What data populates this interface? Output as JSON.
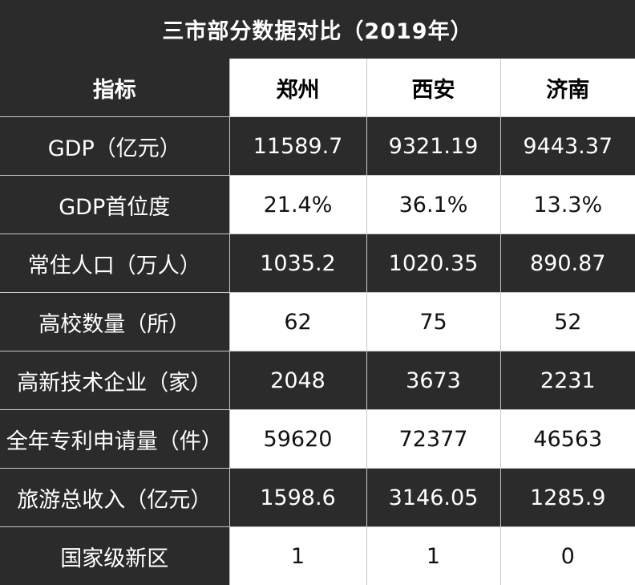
{
  "title": "三市部分数据对比（2019年）",
  "header": {
    "label": "指标",
    "cities": [
      "郑州",
      "西安",
      "济南"
    ]
  },
  "rows": [
    {
      "label": "GDP（亿元）",
      "values": [
        "11589.7",
        "9321.19",
        "9443.37"
      ]
    },
    {
      "label": "GDP首位度",
      "values": [
        "21.4%",
        "36.1%",
        "13.3%"
      ]
    },
    {
      "label": "常住人口（万人）",
      "values": [
        "1035.2",
        "1020.35",
        "890.87"
      ]
    },
    {
      "label": "高校数量（所）",
      "values": [
        "62",
        "75",
        "52"
      ]
    },
    {
      "label": "高新技术企业（家）",
      "values": [
        "2048",
        "3673",
        "2231"
      ]
    },
    {
      "label": "全年专利申请量（件）",
      "values": [
        "59620",
        "72377",
        "46563"
      ]
    },
    {
      "label": "旅游总收入（亿元）",
      "values": [
        "1598.6",
        "3146.05",
        "1285.9"
      ]
    },
    {
      "label": "国家级新区",
      "values": [
        "1",
        "1",
        "0"
      ]
    }
  ],
  "colors": {
    "dark": "#2b2b2b",
    "light": "#ffffff",
    "grid": "#c8c8c8"
  }
}
